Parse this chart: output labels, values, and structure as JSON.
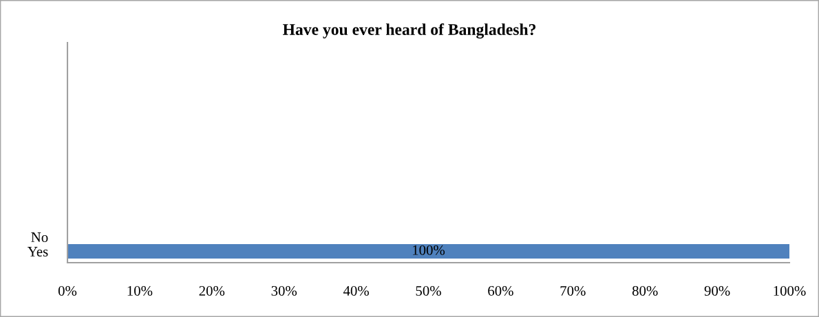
{
  "chart_data": {
    "type": "bar",
    "orientation": "horizontal",
    "title": "Have you ever heard of Bangladesh?",
    "categories": [
      "No",
      "Yes"
    ],
    "values": [
      0,
      100
    ],
    "color": "#4f81bd",
    "value_labels": [
      null,
      "100%"
    ],
    "xlim": [
      0,
      100
    ],
    "xticks": [
      {
        "value": 0,
        "label": "0%"
      },
      {
        "value": 10,
        "label": "10%"
      },
      {
        "value": 20,
        "label": "20%"
      },
      {
        "value": 30,
        "label": "30%"
      },
      {
        "value": 40,
        "label": "40%"
      },
      {
        "value": 50,
        "label": "50%"
      },
      {
        "value": 60,
        "label": "60%"
      },
      {
        "value": 70,
        "label": "70%"
      },
      {
        "value": 80,
        "label": "80%"
      },
      {
        "value": 90,
        "label": "90%"
      },
      {
        "value": 100,
        "label": "100%"
      }
    ],
    "grid": false
  }
}
